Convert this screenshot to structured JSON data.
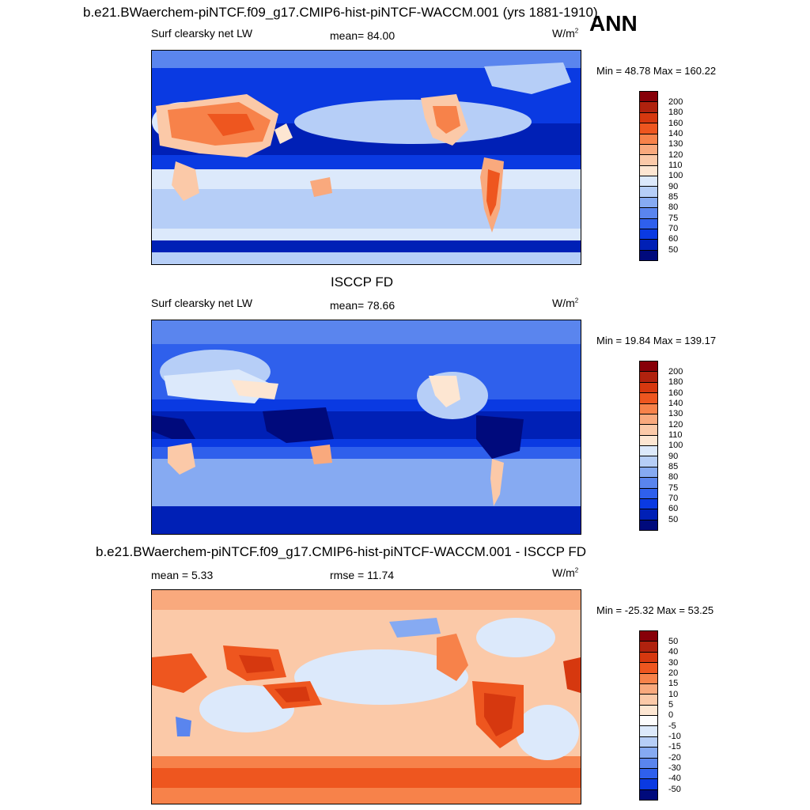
{
  "main_title": "b.e21.BWaerchem-piNTCF.f09_g17.CMIP6-hist-piNTCF-WACCM.001 (yrs 1881-1910)",
  "season": "ANN",
  "panels": [
    {
      "variable": "Surf clearsky net LW",
      "stat": "mean=  84.00",
      "units": "W/m",
      "units_sup": "2",
      "minmax": "Min =  48.78 Max = 160.22",
      "legend_labels": [
        "200",
        "180",
        "160",
        "140",
        "130",
        "120",
        "110",
        "100",
        "90",
        "85",
        "80",
        "75",
        "70",
        "60",
        "50"
      ]
    },
    {
      "heading": "ISCCP FD",
      "variable": "Surf clearsky net LW",
      "stat": "mean=  78.66",
      "units": "W/m",
      "units_sup": "2",
      "minmax": "Min =  19.84 Max = 139.17",
      "legend_labels": [
        "200",
        "180",
        "160",
        "140",
        "130",
        "120",
        "110",
        "100",
        "90",
        "85",
        "80",
        "75",
        "70",
        "60",
        "50"
      ]
    },
    {
      "heading": "b.e21.BWaerchem-piNTCF.f09_g17.CMIP6-hist-piNTCF-WACCM.001 - ISCCP FD",
      "stat_left": "mean =   5.33",
      "stat": "rmse =  11.74",
      "units": "W/m",
      "units_sup": "2",
      "minmax": "Min = -25.32 Max =  53.25",
      "legend_labels": [
        "50",
        "40",
        "30",
        "20",
        "15",
        "10",
        "5",
        "0",
        "-5",
        "-10",
        "-15",
        "-20",
        "-30",
        "-40",
        "-50"
      ]
    }
  ],
  "colors": {
    "abs_scale": [
      "#870008",
      "#b0220e",
      "#d6380f",
      "#ee561f",
      "#f7824a",
      "#f9a97d",
      "#fbc9a8",
      "#fde6d2",
      "#dce9fb",
      "#b6cef7",
      "#86aaf2",
      "#5a85ee",
      "#2f60ec",
      "#0a3ae2",
      "#0020b6",
      "#000a7c"
    ],
    "diff_scale": [
      "#870008",
      "#b0220e",
      "#d6380f",
      "#ee561f",
      "#f7824a",
      "#f9a97d",
      "#fbc9a8",
      "#fde6d2",
      "#fdfdfd",
      "#dce9fb",
      "#b6cef7",
      "#86aaf2",
      "#5a85ee",
      "#2f60ec",
      "#0a3ae2",
      "#000a7c"
    ]
  }
}
